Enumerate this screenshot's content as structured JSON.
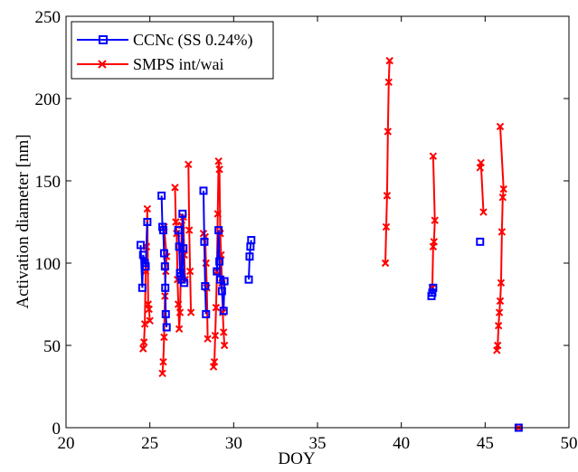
{
  "chart_data": {
    "type": "line",
    "xlabel": "DOY",
    "ylabel": "Activation diameter [nm]",
    "xlim": [
      20,
      50
    ],
    "ylim": [
      0,
      250
    ],
    "xticks": [
      "20",
      "25",
      "30",
      "35",
      "40",
      "45",
      "50"
    ],
    "yticks": [
      "0",
      "50",
      "100",
      "150",
      "200",
      "250"
    ],
    "grid": false,
    "legend_position": "top-left",
    "series": [
      {
        "name": "CCNc (SS 0.24%)",
        "color": "#0000ff",
        "marker": "square",
        "segments": [
          [
            [
              24.45,
              111
            ],
            [
              24.55,
              85
            ],
            [
              24.6,
              105
            ],
            [
              24.7,
              100
            ],
            [
              24.75,
              98
            ],
            [
              24.85,
              125
            ]
          ],
          [
            [
              25.7,
              141
            ],
            [
              25.75,
              122
            ],
            [
              25.8,
              120
            ],
            [
              25.85,
              106
            ],
            [
              25.9,
              98
            ],
            [
              25.92,
              85
            ],
            [
              25.95,
              69
            ],
            [
              26.0,
              61
            ]
          ],
          [
            [
              26.7,
              120
            ],
            [
              26.75,
              110
            ],
            [
              26.8,
              94
            ],
            [
              26.85,
              92
            ],
            [
              26.9,
              90
            ],
            [
              26.95,
              130
            ],
            [
              27.0,
              109
            ],
            [
              27.05,
              88
            ]
          ],
          [
            [
              28.2,
              144
            ],
            [
              28.25,
              113
            ],
            [
              28.3,
              86
            ],
            [
              28.35,
              69
            ]
          ],
          [
            [
              29.0,
              95
            ],
            [
              29.1,
              120
            ],
            [
              29.15,
              101
            ],
            [
              29.2,
              90
            ],
            [
              29.3,
              83
            ],
            [
              29.4,
              71
            ],
            [
              29.45,
              89
            ]
          ],
          [
            [
              30.9,
              90
            ],
            [
              30.95,
              104
            ],
            [
              31.0,
              110
            ],
            [
              31.05,
              114
            ]
          ],
          [
            [
              41.8,
              80
            ],
            [
              41.85,
              82
            ],
            [
              41.9,
              85
            ]
          ],
          [
            [
              44.7,
              113
            ]
          ],
          [
            [
              47.0,
              0
            ]
          ]
        ]
      },
      {
        "name": "SMPS int/wai",
        "color": "#ff0000",
        "marker": "x",
        "segments": [
          [
            [
              24.6,
              48
            ],
            [
              24.65,
              52
            ],
            [
              24.7,
              63
            ],
            [
              24.75,
              95
            ],
            [
              24.8,
              110
            ],
            [
              24.85,
              133
            ],
            [
              24.9,
              75
            ],
            [
              24.95,
              72
            ],
            [
              25.0,
              65
            ]
          ],
          [
            [
              25.75,
              33
            ],
            [
              25.8,
              40
            ],
            [
              25.85,
              55
            ],
            [
              25.9,
              80
            ],
            [
              25.95,
              95
            ],
            [
              26.0,
              104
            ],
            [
              25.85,
              122
            ]
          ],
          [
            [
              26.5,
              146
            ],
            [
              26.55,
              125
            ],
            [
              26.6,
              118
            ],
            [
              26.65,
              90
            ],
            [
              26.7,
              75
            ],
            [
              26.75,
              60
            ],
            [
              26.8,
              70
            ],
            [
              26.9,
              123
            ],
            [
              27.0,
              128
            ],
            [
              27.05,
              105
            ],
            [
              27.1,
              90
            ]
          ],
          [
            [
              27.3,
              160
            ],
            [
              27.35,
              120
            ],
            [
              27.4,
              95
            ],
            [
              27.45,
              70
            ]
          ],
          [
            [
              28.2,
              118
            ],
            [
              28.3,
              116
            ],
            [
              28.35,
              100
            ],
            [
              28.4,
              85
            ],
            [
              28.45,
              54
            ]
          ],
          [
            [
              28.8,
              37
            ],
            [
              28.85,
              40
            ],
            [
              28.9,
              56
            ],
            [
              28.95,
              73
            ],
            [
              29.0,
              95
            ],
            [
              29.05,
              130
            ],
            [
              29.1,
              162
            ],
            [
              29.15,
              157
            ],
            [
              29.2,
              118
            ],
            [
              29.25,
              105
            ],
            [
              29.3,
              88
            ],
            [
              29.35,
              70
            ],
            [
              29.4,
              58
            ],
            [
              29.45,
              50
            ]
          ],
          [
            [
              39.05,
              100
            ],
            [
              39.1,
              122
            ],
            [
              39.15,
              141
            ],
            [
              39.2,
              180
            ],
            [
              39.25,
              210
            ],
            [
              39.3,
              223
            ]
          ],
          [
            [
              41.85,
              85
            ],
            [
              41.9,
              110
            ],
            [
              41.95,
              113
            ],
            [
              42.0,
              126
            ],
            [
              41.9,
              165
            ]
          ],
          [
            [
              44.7,
              158
            ],
            [
              44.75,
              161
            ],
            [
              44.9,
              131
            ]
          ],
          [
            [
              45.7,
              47
            ],
            [
              45.75,
              50
            ],
            [
              45.8,
              62
            ],
            [
              45.85,
              70
            ],
            [
              45.9,
              77
            ],
            [
              45.95,
              88
            ],
            [
              46.0,
              119
            ],
            [
              46.05,
              140
            ],
            [
              46.1,
              145
            ],
            [
              45.9,
              183
            ]
          ],
          [
            [
              47.0,
              0
            ]
          ]
        ]
      }
    ]
  }
}
